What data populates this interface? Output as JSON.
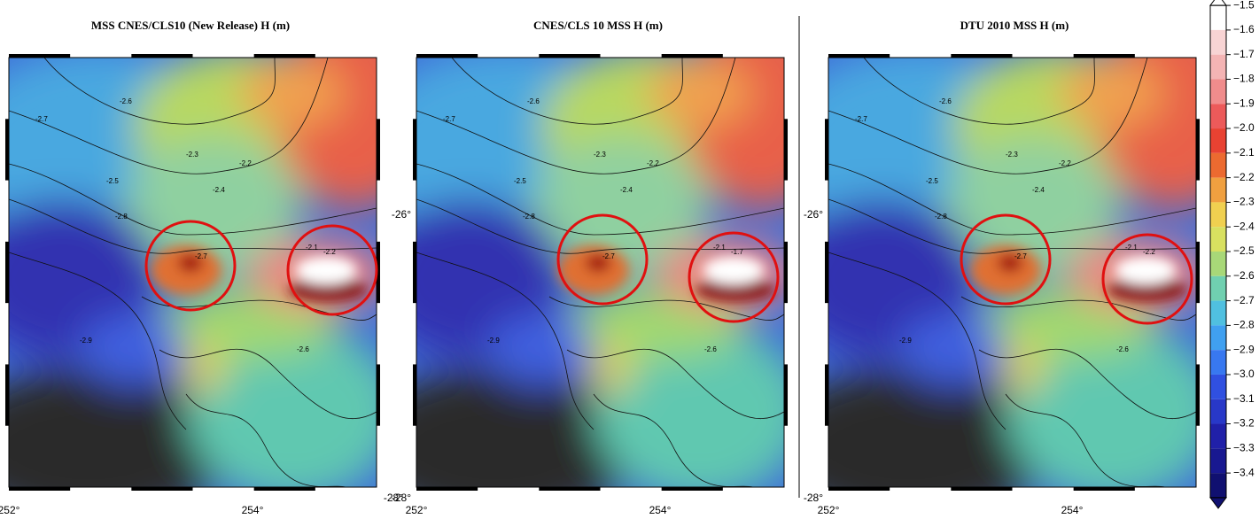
{
  "panels": [
    {
      "title": "MSS CNES/CLS10 (New Release)   H (m)",
      "x_labels": [
        "252°",
        "254°"
      ],
      "y_labels": [
        "-28°"
      ],
      "contour_labels": [
        "-2.6",
        "-2.7",
        "-2.3",
        "-2.2",
        "-2.5",
        "-2.4",
        "-2.8",
        "-2.1",
        "-2.7",
        "-2.2",
        "-2.9",
        "-2.6"
      ]
    },
    {
      "title": "CNES/CLS 10 MSS    H (m)",
      "x_labels": [
        "252°",
        "254°"
      ],
      "y_labels": [
        "-26°",
        "-28°"
      ],
      "contour_labels": [
        "-2.6",
        "-2.7",
        "-2.3",
        "-2.2",
        "-2.5",
        "-2.4",
        "-2.8",
        "-2.1",
        "-2.7",
        "-1.7",
        "-2.9",
        "-2.6"
      ]
    },
    {
      "title": "DTU 2010 MSS    H (m)",
      "x_labels": [
        "252°",
        "254°"
      ],
      "y_labels": [
        "-26°",
        "-28°"
      ],
      "contour_labels": [
        "-2.6",
        "-2.7",
        "-2.3",
        "-2.2",
        "-2.5",
        "-2.4",
        "-2.8",
        "-2.1",
        "-2.7",
        "-2.2",
        "-2.9",
        "-2.6"
      ]
    }
  ],
  "colorbar": {
    "labels": [
      "−1.5",
      "−1.6",
      "−1.7",
      "−1.8",
      "−1.9",
      "−2.0",
      "−2.1",
      "−2.2",
      "−2.3",
      "−2.4",
      "−2.5",
      "−2.6",
      "−2.7",
      "−2.8",
      "−2.9",
      "−3.0",
      "−3.1",
      "−3.2",
      "−3.3",
      "−3.4"
    ],
    "colors": [
      "#ffffff",
      "#f8d4d4",
      "#f4b4b4",
      "#f08c8c",
      "#ec5a5a",
      "#e84232",
      "#ec6a30",
      "#f0a040",
      "#f0d050",
      "#d8e060",
      "#a8d878",
      "#70d0b0",
      "#50c0e0",
      "#40a0f0",
      "#3878f0",
      "#3050e0",
      "#2838c8",
      "#2020a8",
      "#181890",
      "#101070"
    ]
  }
}
